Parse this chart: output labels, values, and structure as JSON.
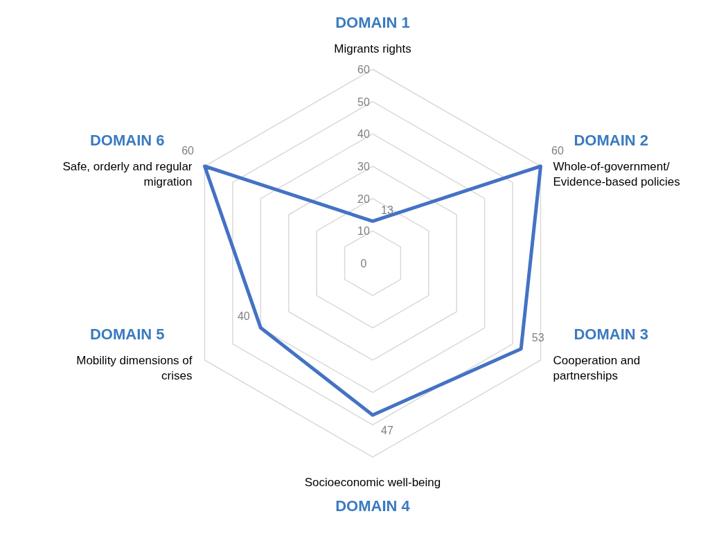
{
  "chart_data": {
    "type": "radar",
    "categories": [
      "Migrants rights",
      "Whole-of-government/ Evidence-based policies",
      "Cooperation and partnerships",
      "Socioeconomic well-being",
      "Mobility dimensions of crises",
      "Safe, orderly and regular migration"
    ],
    "series": [
      {
        "color": "#4472c4",
        "values": [
          13,
          60,
          53,
          47,
          40,
          60
        ]
      }
    ],
    "ylim": [
      0,
      60
    ],
    "yticks": [
      0,
      10,
      20,
      30,
      40,
      50,
      60
    ],
    "grid": true,
    "data_labels": true,
    "marker": "none",
    "annotations": [
      "DOMAIN 1",
      "DOMAIN 2",
      "DOMAIN 3",
      "DOMAIN 4",
      "DOMAIN 5",
      "DOMAIN 6"
    ]
  }
}
